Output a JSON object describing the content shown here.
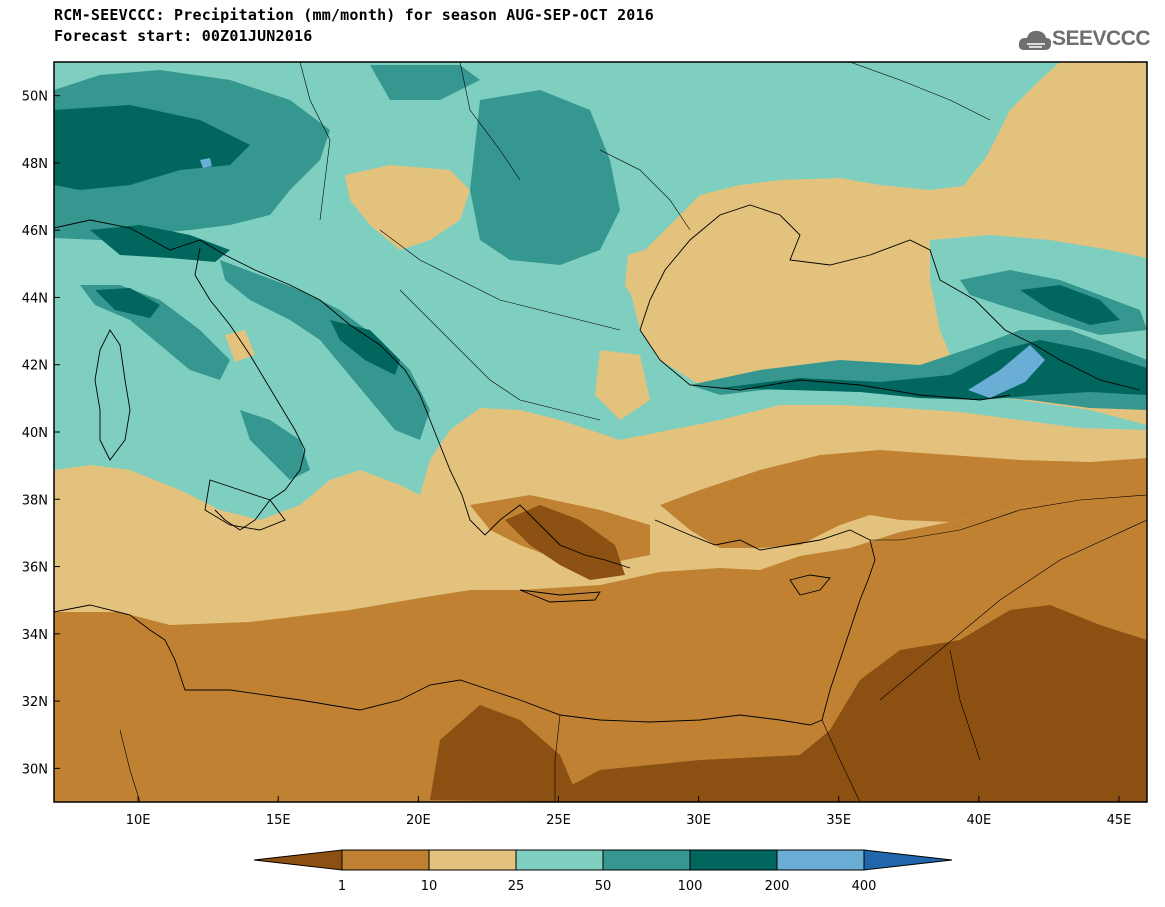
{
  "header": {
    "title": "RCM-SEEVCCC: Precipitation (mm/month) for season AUG-SEP-OCT 2016",
    "subtitle": "Forecast start: 00Z01JUN2016"
  },
  "logo": {
    "text": "SEEVCCC",
    "icon": "cloud-icon"
  },
  "map": {
    "variable": "Precipitation",
    "units": "mm/month",
    "lon_range": [
      7,
      46
    ],
    "lat_range": [
      29,
      51
    ],
    "lat_ticks": [
      {
        "value": 50,
        "label": "50N"
      },
      {
        "value": 48,
        "label": "48N"
      },
      {
        "value": 46,
        "label": "46N"
      },
      {
        "value": 44,
        "label": "44N"
      },
      {
        "value": 42,
        "label": "42N"
      },
      {
        "value": 40,
        "label": "40N"
      },
      {
        "value": 38,
        "label": "38N"
      },
      {
        "value": 36,
        "label": "36N"
      },
      {
        "value": 34,
        "label": "34N"
      },
      {
        "value": 32,
        "label": "32N"
      },
      {
        "value": 30,
        "label": "30N"
      }
    ],
    "lon_ticks": [
      {
        "value": 10,
        "label": "10E"
      },
      {
        "value": 15,
        "label": "15E"
      },
      {
        "value": 20,
        "label": "20E"
      },
      {
        "value": 25,
        "label": "25E"
      },
      {
        "value": 30,
        "label": "30E"
      },
      {
        "value": 35,
        "label": "35E"
      },
      {
        "value": 40,
        "label": "40E"
      },
      {
        "value": 45,
        "label": "45E"
      }
    ]
  },
  "colorbar": {
    "labels": [
      "1",
      "10",
      "25",
      "50",
      "100",
      "200",
      "400"
    ],
    "colors": [
      "#8b5012",
      "#c08232",
      "#e3c27e",
      "#7fcfc0",
      "#35978f",
      "#01665e",
      "#6aaed6",
      "#2166ac"
    ]
  }
}
